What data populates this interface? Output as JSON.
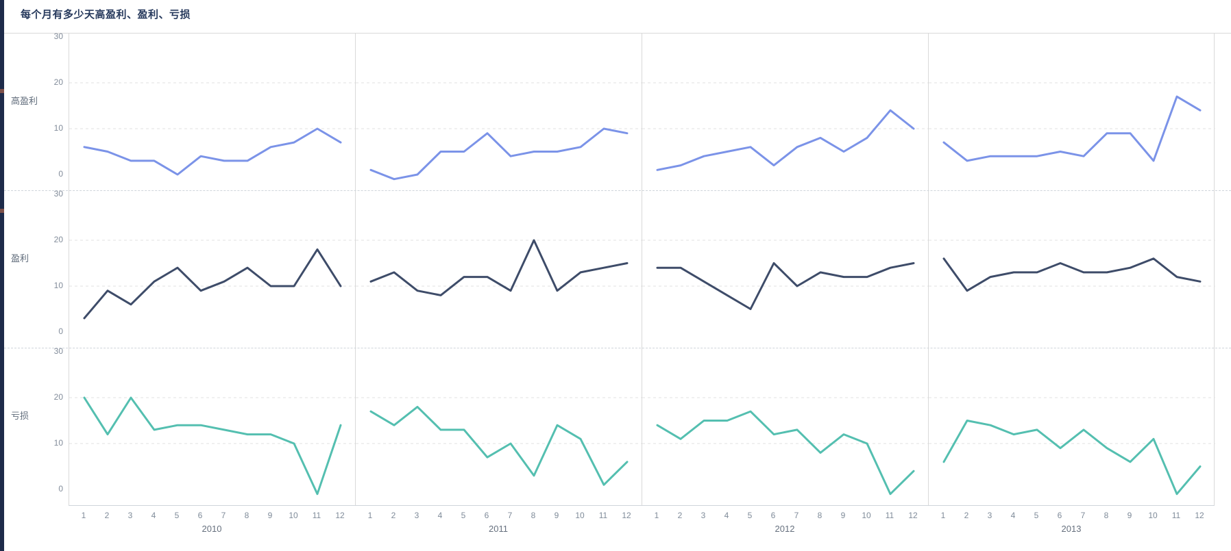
{
  "page": {
    "title": "每个月有多少天高盈利、盈利、亏损"
  },
  "chart_data": {
    "type": "line",
    "layout": "facet-grid 3 rows x 4 columns, shared axes",
    "title": "每个月有多少天高盈利、盈利、亏损",
    "xlabel": "",
    "ylabel": "",
    "columns": [
      "2010",
      "2011",
      "2012",
      "2013"
    ],
    "x_ticks": [
      "1",
      "2",
      "3",
      "4",
      "5",
      "6",
      "7",
      "8",
      "9",
      "10",
      "11",
      "12"
    ],
    "y_ticks": [
      30,
      20,
      10,
      0
    ],
    "ylim": [
      -2,
      31
    ],
    "grid": "horizontal dashed gridlines at y=10 and y=20",
    "legend": "none (row labels act as series labels)",
    "rows": [
      {
        "label": "高盈利",
        "color": "#7b93e8",
        "data": {
          "2010": [
            6,
            5,
            3,
            3,
            0,
            4,
            3,
            3,
            6,
            7,
            10,
            7
          ],
          "2011": [
            1,
            -1,
            0,
            5,
            5,
            9,
            4,
            5,
            5,
            6,
            10,
            9
          ],
          "2012": [
            1,
            2,
            4,
            5,
            6,
            2,
            6,
            8,
            5,
            8,
            14,
            10
          ],
          "2013": [
            7,
            3,
            4,
            4,
            4,
            5,
            4,
            9,
            9,
            3,
            17,
            14
          ]
        }
      },
      {
        "label": "盈利",
        "color": "#3e4c69",
        "data": {
          "2010": [
            3,
            9,
            6,
            11,
            14,
            9,
            11,
            14,
            10,
            10,
            18,
            10
          ],
          "2011": [
            11,
            13,
            9,
            8,
            12,
            12,
            9,
            20,
            9,
            13,
            14,
            15
          ],
          "2012": [
            14,
            14,
            11,
            8,
            5,
            15,
            10,
            13,
            12,
            12,
            14,
            15
          ],
          "2013": [
            16,
            9,
            12,
            13,
            13,
            15,
            13,
            13,
            14,
            16,
            12,
            11
          ]
        }
      },
      {
        "label": "亏损",
        "color": "#54bfb0",
        "data": {
          "2010": [
            20,
            12,
            20,
            13,
            14,
            14,
            13,
            12,
            12,
            10,
            -1,
            14
          ],
          "2011": [
            17,
            14,
            18,
            13,
            13,
            7,
            10,
            3,
            14,
            11,
            1,
            6
          ],
          "2012": [
            14,
            11,
            15,
            15,
            17,
            12,
            13,
            8,
            12,
            10,
            -1,
            4
          ],
          "2013": [
            6,
            15,
            14,
            12,
            13,
            9,
            13,
            9,
            6,
            11,
            -1,
            5
          ]
        }
      }
    ],
    "style": {
      "gridline_color": "#e2e2e2",
      "panel_border_color": "#d9d9d9",
      "tick_label_color": "#828c9a",
      "row_label_color": "#5f6b7a",
      "title_color": "#26395c",
      "accent_bar_color": "#1e2b4a",
      "background": "#ffffff"
    }
  }
}
